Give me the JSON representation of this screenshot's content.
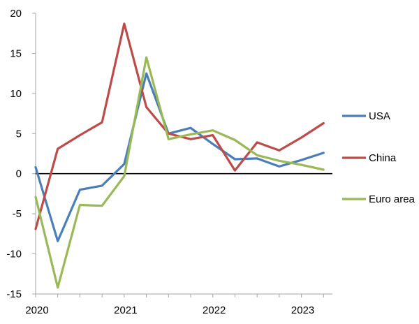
{
  "chart_data": {
    "type": "line",
    "x": [
      2020.0,
      2020.25,
      2020.5,
      2020.75,
      2021.0,
      2021.25,
      2021.5,
      2021.75,
      2022.0,
      2022.25,
      2022.5,
      2022.75,
      2023.0,
      2023.25
    ],
    "series": [
      {
        "name": "USA",
        "color": "#4a7ebb",
        "values": [
          0.8,
          -8.4,
          -2.0,
          -1.5,
          1.2,
          12.5,
          5.0,
          5.7,
          3.7,
          1.8,
          1.9,
          0.9,
          1.7,
          2.6
        ]
      },
      {
        "name": "China",
        "color": "#be4b48",
        "values": [
          -6.9,
          3.1,
          4.8,
          6.4,
          18.7,
          8.3,
          5.0,
          4.3,
          4.8,
          0.4,
          3.9,
          2.9,
          4.5,
          6.3
        ]
      },
      {
        "name": "Euro area",
        "color": "#98b954",
        "values": [
          -2.9,
          -14.2,
          -3.9,
          -4.0,
          -0.3,
          14.5,
          4.3,
          4.9,
          5.4,
          4.2,
          2.3,
          1.6,
          1.1,
          0.5
        ]
      }
    ],
    "xlim": [
      2020,
      2023.35
    ],
    "ylim": [
      -15,
      20
    ],
    "yticks": [
      20,
      15,
      10,
      5,
      0,
      -5,
      -10,
      -15
    ],
    "ytick_labels": [
      "20",
      "15",
      "10",
      "5",
      "0",
      "-5",
      "-10",
      "-15"
    ],
    "xticks": [
      2020,
      2021,
      2022,
      2023
    ],
    "xtick_labels": [
      "2020",
      "2021",
      "2022",
      "2023"
    ],
    "grid": false,
    "legend": "right",
    "zero_line": true,
    "axis_color": "#a6a6a6"
  }
}
